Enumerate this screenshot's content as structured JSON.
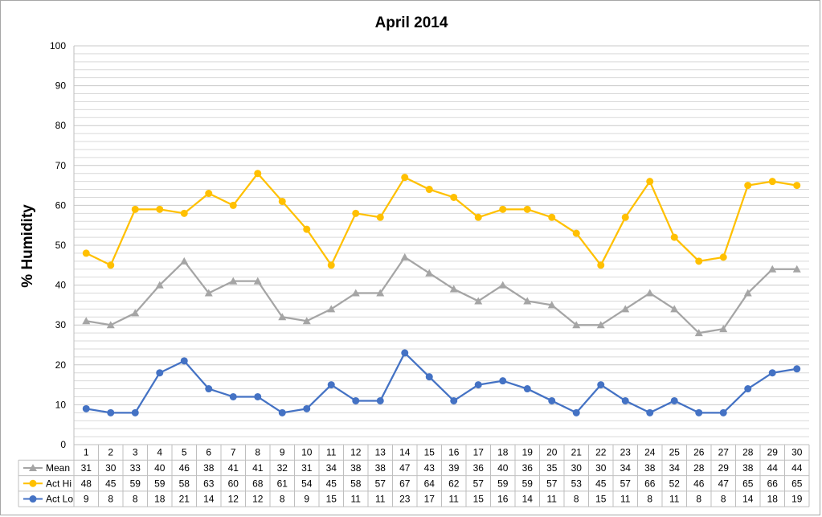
{
  "chart_data": {
    "type": "line",
    "title": "April 2014",
    "ylabel": "% Humidity",
    "xlabel": "",
    "ylim": [
      0,
      100
    ],
    "y_ticks": [
      0,
      10,
      20,
      30,
      40,
      50,
      60,
      70,
      80,
      90,
      100
    ],
    "minor_grid_step": 2,
    "grid": true,
    "legend": "data-table",
    "categories": [
      "1",
      "2",
      "3",
      "4",
      "5",
      "6",
      "7",
      "8",
      "9",
      "10",
      "11",
      "12",
      "13",
      "14",
      "15",
      "16",
      "17",
      "18",
      "19",
      "20",
      "21",
      "22",
      "23",
      "24",
      "25",
      "26",
      "27",
      "28",
      "29",
      "30"
    ],
    "series": [
      {
        "name": "Mean",
        "color": "#a5a5a5",
        "marker": "triangle",
        "values": [
          31,
          30,
          33,
          40,
          46,
          38,
          41,
          41,
          32,
          31,
          34,
          38,
          38,
          47,
          43,
          39,
          36,
          40,
          36,
          35,
          30,
          30,
          34,
          38,
          34,
          28,
          29,
          38,
          44,
          44
        ]
      },
      {
        "name": "Act Hi",
        "color": "#ffc000",
        "marker": "circle",
        "values": [
          48,
          45,
          59,
          59,
          58,
          63,
          60,
          68,
          61,
          54,
          45,
          58,
          57,
          67,
          64,
          62,
          57,
          59,
          59,
          57,
          53,
          45,
          57,
          66,
          52,
          46,
          47,
          65,
          66,
          65
        ]
      },
      {
        "name": "Act Lo",
        "color": "#4472c4",
        "marker": "circle",
        "values": [
          9,
          8,
          8,
          18,
          21,
          14,
          12,
          12,
          8,
          9,
          15,
          11,
          11,
          23,
          17,
          11,
          15,
          16,
          14,
          11,
          8,
          15,
          11,
          8,
          11,
          8,
          8,
          14,
          18,
          19
        ]
      }
    ]
  }
}
